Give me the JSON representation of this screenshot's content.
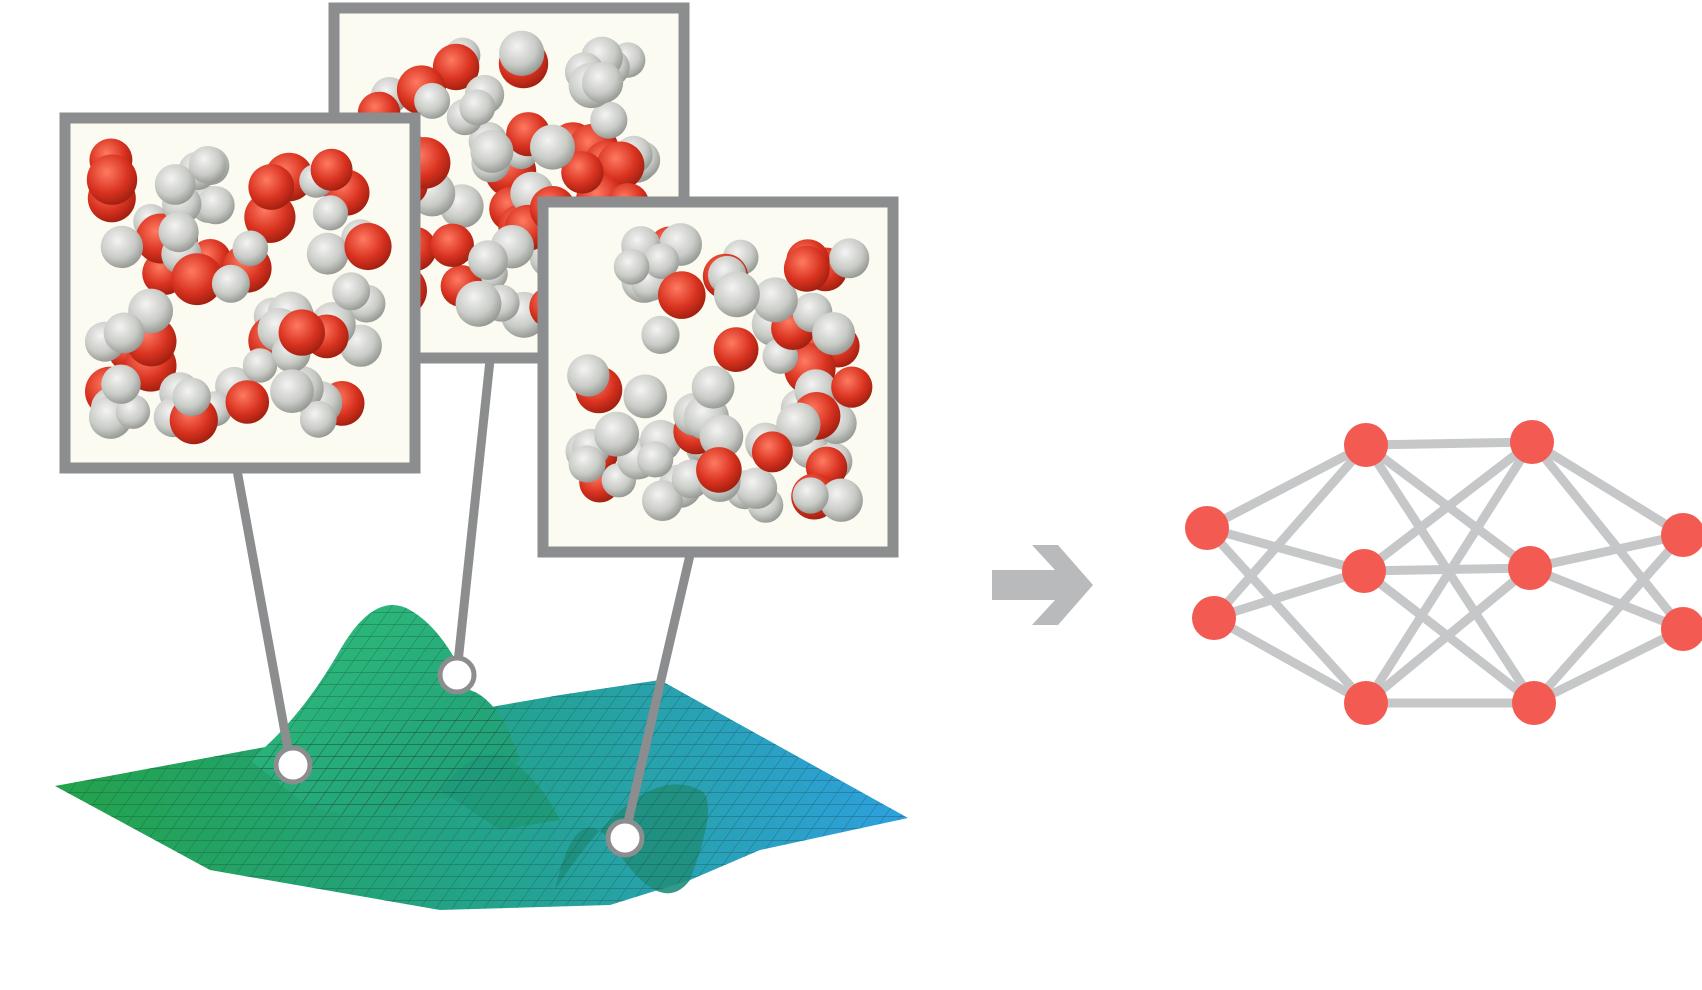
{
  "colors": {
    "frame_border": "#8c8d8f",
    "frame_fill": "#fcfbf1",
    "connector": "#8c8d8f",
    "surface_green": "#23a34a",
    "surface_blue": "#2ea0df",
    "oxygen": "#d8321f",
    "hydrogen": "#c9cbc7",
    "arrow": "#b9babb",
    "nn_node": "#f25a52",
    "nn_edge": "#c6c7c8"
  },
  "diagram": {
    "left_panel": "molecular-configurations-on-energy-surface",
    "arrow_icon": "right-arrow-icon",
    "right_panel": "neural-network",
    "snapshot_count": 3,
    "neural_network": {
      "layers": [
        2,
        3,
        3,
        2
      ]
    }
  }
}
